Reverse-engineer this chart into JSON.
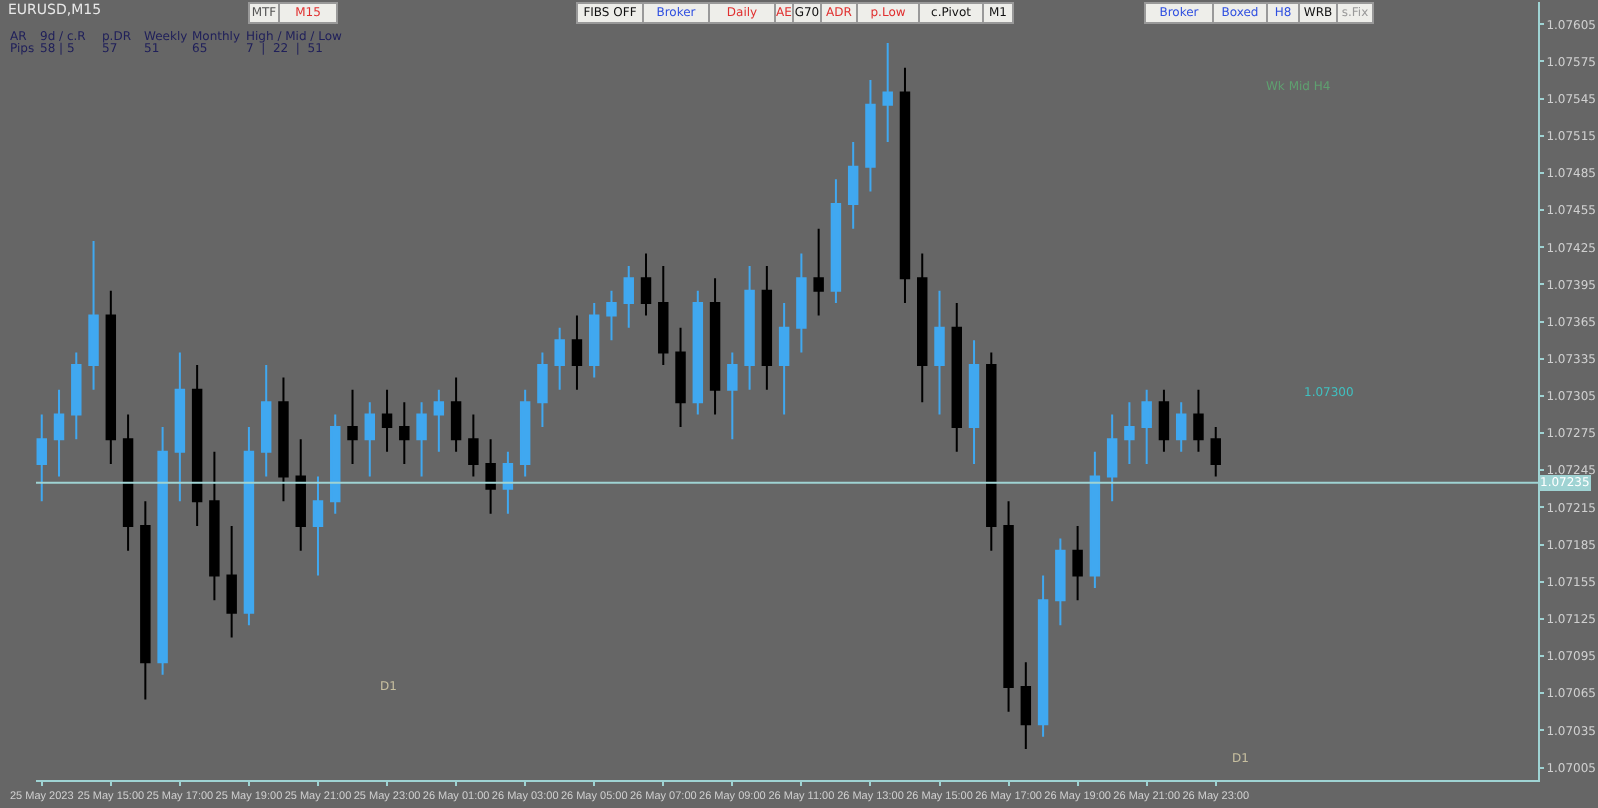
{
  "chart_data": {
    "type": "candlestick",
    "title": "EURUSD,M15",
    "annotations": [
      "MTF",
      "M15",
      "FIBS OFF",
      "Broker",
      "Daily",
      "AE",
      "G70",
      "ADR",
      "p.Low",
      "c.Pivot",
      "M1",
      "Broker",
      "Boxed",
      "H8",
      "WRB",
      "s.Fix",
      "AR",
      "9d / c.R",
      "p.DR",
      "Weekly",
      "Monthly",
      "High / Mid / Low",
      "Pips",
      "58 | 5",
      "57",
      "51",
      "65",
      "7  |  22  |  51",
      "Wk Mid H4",
      "1.07300",
      "D1",
      "D1"
    ],
    "x": [
      "2023-05-25T13:00",
      "2023-05-25T13:30",
      "2023-05-25T14:00",
      "2023-05-25T14:30",
      "2023-05-25T15:00",
      "2023-05-25T15:30",
      "2023-05-25T16:00",
      "2023-05-25T16:30",
      "2023-05-25T17:00",
      "2023-05-25T17:30",
      "2023-05-25T18:00",
      "2023-05-25T18:30",
      "2023-05-25T19:00",
      "2023-05-25T19:30",
      "2023-05-25T20:00",
      "2023-05-25T20:30",
      "2023-05-25T21:00",
      "2023-05-25T21:30",
      "2023-05-25T22:00",
      "2023-05-25T22:30",
      "2023-05-25T23:00",
      "2023-05-25T23:30",
      "2023-05-26T00:00",
      "2023-05-26T00:30",
      "2023-05-26T01:00",
      "2023-05-26T01:30",
      "2023-05-26T02:00",
      "2023-05-26T02:30",
      "2023-05-26T03:00",
      "2023-05-26T03:30",
      "2023-05-26T04:00",
      "2023-05-26T04:30",
      "2023-05-26T05:00",
      "2023-05-26T05:30",
      "2023-05-26T06:00",
      "2023-05-26T06:30",
      "2023-05-26T07:00",
      "2023-05-26T07:30",
      "2023-05-26T08:00",
      "2023-05-26T08:30",
      "2023-05-26T09:00",
      "2023-05-26T09:30",
      "2023-05-26T10:00",
      "2023-05-26T10:30",
      "2023-05-26T11:00",
      "2023-05-26T11:30",
      "2023-05-26T12:00",
      "2023-05-26T12:30",
      "2023-05-26T13:00",
      "2023-05-26T13:30",
      "2023-05-26T14:00",
      "2023-05-26T14:30",
      "2023-05-26T15:00",
      "2023-05-26T15:30",
      "2023-05-26T16:00",
      "2023-05-26T16:30",
      "2023-05-26T17:00",
      "2023-05-26T17:30",
      "2023-05-26T18:00",
      "2023-05-26T18:30",
      "2023-05-26T19:00",
      "2023-05-26T19:30",
      "2023-05-26T20:00",
      "2023-05-26T20:30",
      "2023-05-26T21:00",
      "2023-05-26T21:30",
      "2023-05-26T22:00",
      "2023-05-26T22:30",
      "2023-05-26T23:00"
    ],
    "ohlc": [
      [
        1.0725,
        1.0729,
        1.0722,
        1.0727
      ],
      [
        1.0727,
        1.0731,
        1.0724,
        1.0729
      ],
      [
        1.0729,
        1.0734,
        1.0727,
        1.0733
      ],
      [
        1.0733,
        1.0743,
        1.0731,
        1.0737
      ],
      [
        1.0737,
        1.0739,
        1.0725,
        1.0727
      ],
      [
        1.0727,
        1.0729,
        1.0718,
        1.072
      ],
      [
        1.072,
        1.0722,
        1.0706,
        1.0709
      ],
      [
        1.0709,
        1.0728,
        1.0708,
        1.0726
      ],
      [
        1.0726,
        1.0734,
        1.0722,
        1.0731
      ],
      [
        1.0731,
        1.0733,
        1.072,
        1.0722
      ],
      [
        1.0722,
        1.0726,
        1.0714,
        1.0716
      ],
      [
        1.0716,
        1.072,
        1.0711,
        1.0713
      ],
      [
        1.0713,
        1.0728,
        1.0712,
        1.0726
      ],
      [
        1.0726,
        1.0733,
        1.0724,
        1.073
      ],
      [
        1.073,
        1.0732,
        1.0722,
        1.0724
      ],
      [
        1.0724,
        1.0727,
        1.0718,
        1.072
      ],
      [
        1.072,
        1.0724,
        1.0716,
        1.0722
      ],
      [
        1.0722,
        1.0729,
        1.0721,
        1.0728
      ],
      [
        1.0728,
        1.0731,
        1.0725,
        1.0727
      ],
      [
        1.0727,
        1.073,
        1.0724,
        1.0729
      ],
      [
        1.0729,
        1.0731,
        1.0726,
        1.0728
      ],
      [
        1.0728,
        1.073,
        1.0725,
        1.0727
      ],
      [
        1.0727,
        1.073,
        1.0724,
        1.0729
      ],
      [
        1.0729,
        1.0731,
        1.0726,
        1.073
      ],
      [
        1.073,
        1.0732,
        1.0726,
        1.0727
      ],
      [
        1.0727,
        1.0729,
        1.0724,
        1.0725
      ],
      [
        1.0725,
        1.0727,
        1.0721,
        1.0723
      ],
      [
        1.0723,
        1.0726,
        1.0721,
        1.0725
      ],
      [
        1.0725,
        1.0731,
        1.0724,
        1.073
      ],
      [
        1.073,
        1.0734,
        1.0728,
        1.0733
      ],
      [
        1.0733,
        1.0736,
        1.0731,
        1.0735
      ],
      [
        1.0735,
        1.0737,
        1.0731,
        1.0733
      ],
      [
        1.0733,
        1.0738,
        1.0732,
        1.0737
      ],
      [
        1.0737,
        1.0739,
        1.0735,
        1.0738
      ],
      [
        1.0738,
        1.0741,
        1.0736,
        1.074
      ],
      [
        1.074,
        1.0742,
        1.0737,
        1.0738
      ],
      [
        1.0738,
        1.0741,
        1.0733,
        1.0734
      ],
      [
        1.0734,
        1.0736,
        1.0728,
        1.073
      ],
      [
        1.073,
        1.0739,
        1.0729,
        1.0738
      ],
      [
        1.0738,
        1.074,
        1.0729,
        1.0731
      ],
      [
        1.0731,
        1.0734,
        1.0727,
        1.0733
      ],
      [
        1.0733,
        1.0741,
        1.0731,
        1.0739
      ],
      [
        1.0739,
        1.0741,
        1.0731,
        1.0733
      ],
      [
        1.0733,
        1.0738,
        1.0729,
        1.0736
      ],
      [
        1.0736,
        1.0742,
        1.0734,
        1.074
      ],
      [
        1.074,
        1.0744,
        1.0737,
        1.0739
      ],
      [
        1.0739,
        1.0748,
        1.0738,
        1.0746
      ],
      [
        1.0746,
        1.0751,
        1.0744,
        1.0749
      ],
      [
        1.0749,
        1.0756,
        1.0747,
        1.0754
      ],
      [
        1.0754,
        1.0759,
        1.0751,
        1.0755
      ],
      [
        1.0755,
        1.0757,
        1.0738,
        1.074
      ],
      [
        1.074,
        1.0742,
        1.073,
        1.0733
      ],
      [
        1.0733,
        1.0739,
        1.0729,
        1.0736
      ],
      [
        1.0736,
        1.0738,
        1.0726,
        1.0728
      ],
      [
        1.0728,
        1.0735,
        1.0725,
        1.0733
      ],
      [
        1.0733,
        1.0734,
        1.0718,
        1.072
      ],
      [
        1.072,
        1.0722,
        1.0705,
        1.0707
      ],
      [
        1.0707,
        1.0709,
        1.0702,
        1.0704
      ],
      [
        1.0704,
        1.0716,
        1.0703,
        1.0714
      ],
      [
        1.0714,
        1.0719,
        1.0712,
        1.0718
      ],
      [
        1.0718,
        1.072,
        1.0714,
        1.0716
      ],
      [
        1.0716,
        1.0726,
        1.0715,
        1.0724
      ],
      [
        1.0724,
        1.0729,
        1.0722,
        1.0727
      ],
      [
        1.0727,
        1.073,
        1.0725,
        1.0728
      ],
      [
        1.0728,
        1.0731,
        1.0725,
        1.073
      ],
      [
        1.073,
        1.0731,
        1.0726,
        1.0727
      ],
      [
        1.0727,
        1.073,
        1.0726,
        1.0729
      ],
      [
        1.0729,
        1.0731,
        1.0726,
        1.0727
      ],
      [
        1.0727,
        1.0728,
        1.0724,
        1.0725
      ]
    ],
    "colors": [
      "#40a8f0",
      "#40a8f0",
      "#40a8f0",
      "#40a8f0",
      "#000000",
      "#000000",
      "#000000",
      "#40a8f0",
      "#40a8f0",
      "#000000",
      "#000000",
      "#000000",
      "#40a8f0",
      "#40a8f0",
      "#000000",
      "#000000",
      "#40a8f0",
      "#40a8f0",
      "#000000",
      "#40a8f0",
      "#000000",
      "#000000",
      "#40a8f0",
      "#40a8f0",
      "#000000",
      "#000000",
      "#000000",
      "#40a8f0",
      "#40a8f0",
      "#40a8f0",
      "#40a8f0",
      "#000000",
      "#40a8f0",
      "#40a8f0",
      "#40a8f0",
      "#000000",
      "#000000",
      "#000000",
      "#40a8f0",
      "#000000",
      "#40a8f0",
      "#40a8f0",
      "#000000",
      "#40a8f0",
      "#40a8f0",
      "#000000",
      "#40a8f0",
      "#40a8f0",
      "#40a8f0",
      "#40a8f0",
      "#000000",
      "#000000",
      "#40a8f0",
      "#000000",
      "#40a8f0",
      "#000000",
      "#000000",
      "#000000",
      "#40a8f0",
      "#40a8f0",
      "#000000",
      "#40a8f0",
      "#40a8f0",
      "#40a8f0",
      "#40a8f0",
      "#000000",
      "#40a8f0",
      "#000000",
      "#000000"
    ],
    "xlim": [
      "2023-05-25T12:50",
      "2023-05-27T08:20"
    ],
    "xticks": [
      {
        "value": "2023-05-25T13:00",
        "label": "25 May 2023"
      },
      {
        "value": "2023-05-25T15:00",
        "label": "25 May 15:00"
      },
      {
        "value": "2023-05-25T17:00",
        "label": "25 May 17:00"
      },
      {
        "value": "2023-05-25T19:00",
        "label": "25 May 19:00"
      },
      {
        "value": "2023-05-25T21:00",
        "label": "25 May 21:00"
      },
      {
        "value": "2023-05-25T23:00",
        "label": "25 May 23:00"
      },
      {
        "value": "2023-05-26T01:00",
        "label": "26 May 01:00"
      },
      {
        "value": "2023-05-26T03:00",
        "label": "26 May 03:00"
      },
      {
        "value": "2023-05-26T05:00",
        "label": "26 May 05:00"
      },
      {
        "value": "2023-05-26T07:00",
        "label": "26 May 07:00"
      },
      {
        "value": "2023-05-26T09:00",
        "label": "26 May 09:00"
      },
      {
        "value": "2023-05-26T11:00",
        "label": "26 May 11:00"
      },
      {
        "value": "2023-05-26T13:00",
        "label": "26 May 13:00"
      },
      {
        "value": "2023-05-26T15:00",
        "label": "26 May 15:00"
      },
      {
        "value": "2023-05-26T17:00",
        "label": "26 May 17:00"
      },
      {
        "value": "2023-05-26T19:00",
        "label": "26 May 19:00"
      },
      {
        "value": "2023-05-26T21:00",
        "label": "26 May 21:00"
      },
      {
        "value": "2023-05-26T23:00",
        "label": "26 May 23:00"
      }
    ],
    "ylim": [
      1.06995,
      1.07623
    ],
    "yticks": [
      {
        "value": 1.07605,
        "label": "1.07605"
      },
      {
        "value": 1.07575,
        "label": "1.07575"
      },
      {
        "value": 1.07545,
        "label": "1.07545"
      },
      {
        "value": 1.07515,
        "label": "1.07515"
      },
      {
        "value": 1.07485,
        "label": "1.07485"
      },
      {
        "value": 1.07455,
        "label": "1.07455"
      },
      {
        "value": 1.07425,
        "label": "1.07425"
      },
      {
        "value": 1.07395,
        "label": "1.07395"
      },
      {
        "value": 1.07365,
        "label": "1.07365"
      },
      {
        "value": 1.07335,
        "label": "1.07335"
      },
      {
        "value": 1.07305,
        "label": "1.07305"
      },
      {
        "value": 1.07275,
        "label": "1.07275"
      },
      {
        "value": 1.07245,
        "label": "1.07245"
      },
      {
        "value": 1.07215,
        "label": "1.07215"
      },
      {
        "value": 1.07185,
        "label": "1.07185"
      },
      {
        "value": 1.07155,
        "label": "1.07155"
      },
      {
        "value": 1.07125,
        "label": "1.07125"
      },
      {
        "value": 1.07095,
        "label": "1.07095"
      },
      {
        "value": 1.07065,
        "label": "1.07065"
      },
      {
        "value": 1.07035,
        "label": "1.07035"
      },
      {
        "value": 1.07005,
        "label": "1.07005"
      }
    ],
    "ref_lines": [
      {
        "axis": "y",
        "value": 1.07235,
        "label": "1.07235",
        "color": "#9fd3d3",
        "line_style": "solid"
      }
    ],
    "grid": false
  }
}
